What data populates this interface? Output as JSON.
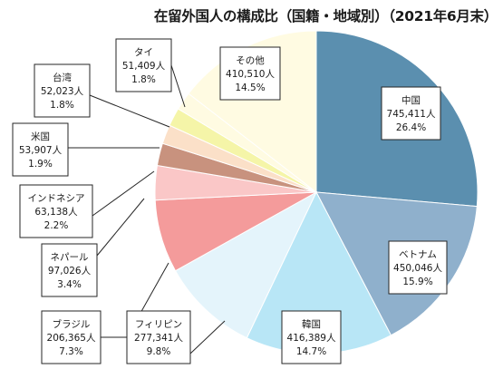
{
  "chart_data": {
    "type": "pie",
    "title": "在留外国人の構成比（国籍・地域別）（2021年6月末）",
    "slices": [
      {
        "name": "中国",
        "value_text": "745,411人",
        "percent_text": "26.4%",
        "value": 745411,
        "percent": 26.4,
        "color": "#5b8faf"
      },
      {
        "name": "ベトナム",
        "value_text": "450,046人",
        "percent_text": "15.9%",
        "value": 450046,
        "percent": 15.9,
        "color": "#8fb0cc"
      },
      {
        "name": "韓国",
        "value_text": "416,389人",
        "percent_text": "14.7%",
        "value": 416389,
        "percent": 14.7,
        "color": "#b8e6f6"
      },
      {
        "name": "フィリピン",
        "value_text": "277,341人",
        "percent_text": "9.8%",
        "value": 277341,
        "percent": 9.8,
        "color": "#e4f4fb"
      },
      {
        "name": "ブラジル",
        "value_text": "206,365人",
        "percent_text": "7.3%",
        "value": 206365,
        "percent": 7.3,
        "color": "#f49b9b"
      },
      {
        "name": "ネパール",
        "value_text": "97,026人",
        "percent_text": "3.4%",
        "value": 97026,
        "percent": 3.4,
        "color": "#fac7c7"
      },
      {
        "name": "インドネシア",
        "value_text": "63,138人",
        "percent_text": "2.2%",
        "value": 63138,
        "percent": 2.2,
        "color": "#c8927e"
      },
      {
        "name": "米国",
        "value_text": "53,907人",
        "percent_text": "1.9%",
        "value": 53907,
        "percent": 1.9,
        "color": "#fbe0c8"
      },
      {
        "name": "台湾",
        "value_text": "52,023人",
        "percent_text": "1.8%",
        "value": 52023,
        "percent": 1.8,
        "color": "#f5f5a8"
      },
      {
        "name": "タイ",
        "value_text": "51,409人",
        "percent_text": "1.8%",
        "value": 51409,
        "percent": 1.8,
        "color": "#fffbe2"
      },
      {
        "name": "その他",
        "value_text": "410,510人",
        "percent_text": "14.5%",
        "value": 410510,
        "percent": 14.5,
        "color": "#fffbe2"
      }
    ]
  }
}
